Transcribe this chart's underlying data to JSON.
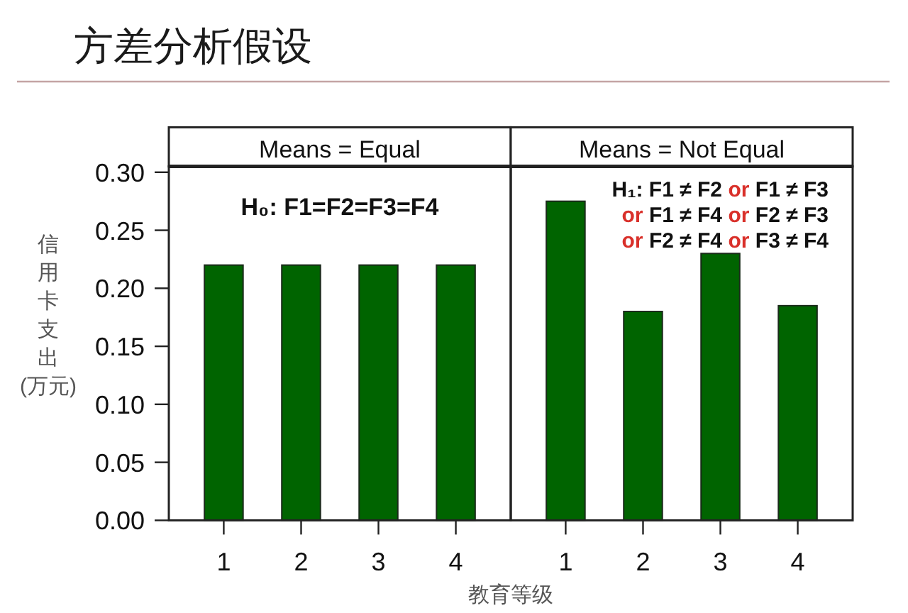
{
  "chart_data": [
    {
      "type": "other",
      "title": "方差分析假设"
    },
    {
      "type": "bar",
      "title": "Means = Equal",
      "xlabel": "教育等级",
      "ylabel": "信用卡支出(万元)",
      "categories": [
        "1",
        "2",
        "3",
        "4"
      ],
      "values": [
        0.22,
        0.22,
        0.22,
        0.22
      ],
      "color": "#006400",
      "ylim": [
        0,
        0.305
      ],
      "yticks": [
        {
          "value": 0,
          "label": "0.00"
        },
        {
          "value": 0.05,
          "label": "0.05"
        },
        {
          "value": 0.1,
          "label": "0.10"
        },
        {
          "value": 0.15,
          "label": "0.15"
        },
        {
          "value": 0.2,
          "label": "0.20"
        },
        {
          "value": 0.25,
          "label": "0.25"
        },
        {
          "value": 0.3,
          "label": "0.30"
        }
      ],
      "annotations": [
        "H₀: F1=F2=F3=F4"
      ]
    },
    {
      "type": "bar",
      "title": "Means = Not Equal",
      "categories": [
        "1",
        "2",
        "3",
        "4"
      ],
      "values": [
        0.275,
        0.18,
        0.23,
        0.185
      ],
      "color": "#006400",
      "ylim": [
        0,
        0.305
      ],
      "tick_labels": "x",
      "annotations": [
        "H₁: F1 ≠ F2",
        "or",
        "F1 ≠ F3",
        "or",
        "F1 ≠ F4",
        "or",
        "F2 ≠ F3",
        "or",
        "F2 ≠ F4",
        "or",
        "F3 ≠ F4"
      ]
    }
  ]
}
